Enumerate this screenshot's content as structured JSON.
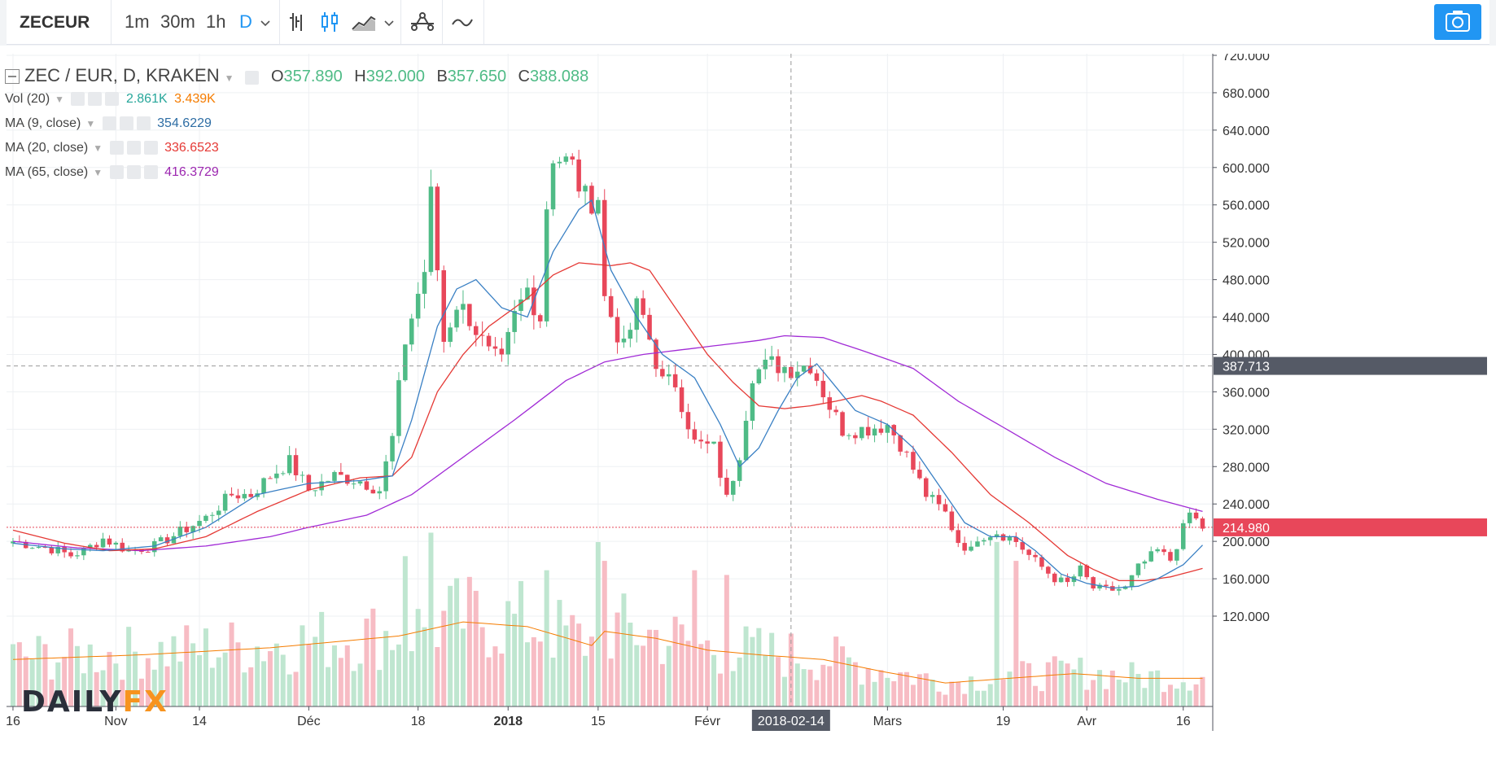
{
  "toolbar": {
    "symbol": "ZECEUR",
    "intervals": [
      {
        "label": "1m",
        "active": false
      },
      {
        "label": "30m",
        "active": false
      },
      {
        "label": "1h",
        "active": false
      },
      {
        "label": "D",
        "active": true
      }
    ]
  },
  "legend": {
    "title": "ZEC / EUR, D, KRAKEN",
    "ohlc": [
      {
        "label": "O",
        "value": "357.890"
      },
      {
        "label": "H",
        "value": "392.000"
      },
      {
        "label": "B",
        "value": "357.650"
      },
      {
        "label": "C",
        "value": "388.088"
      }
    ],
    "indicators": [
      {
        "name": "Vol (20)",
        "values": [
          "2.861K",
          "3.439K"
        ],
        "colors": [
          "#26a69a",
          "#f57c00"
        ]
      },
      {
        "name": "MA (9, close)",
        "values": [
          "354.6229"
        ],
        "colors": [
          "#2e6da4"
        ]
      },
      {
        "name": "MA (20, close)",
        "values": [
          "336.6523"
        ],
        "colors": [
          "#e53935"
        ]
      },
      {
        "name": "MA (65, close)",
        "values": [
          "416.3729"
        ],
        "colors": [
          "#9c27b0"
        ]
      }
    ]
  },
  "logo": {
    "part1": "DAILY",
    "part2": "FX"
  },
  "colors": {
    "up": "#4fbb86",
    "down": "#e8475a",
    "ma9": "#3a80c4",
    "ma20": "#e53935",
    "ma65": "#a12bd6",
    "volma": "#f57c00",
    "accent": "#2196f3"
  },
  "chart_data": {
    "type": "candlestick",
    "title": "ZEC / EUR, D, KRAKEN",
    "y_axis": {
      "range": [
        110,
        725
      ],
      "ticks": [
        120,
        160,
        200,
        240,
        280,
        320,
        360,
        400,
        440,
        480,
        520,
        560,
        600,
        640,
        680,
        720
      ],
      "tick_labels": [
        "120.000",
        "160.000",
        "200.000",
        "240.000",
        "280.000",
        "320.000",
        "360.000",
        "400.000",
        "440.000",
        "480.000",
        "520.000",
        "560.000",
        "600.000",
        "640.000",
        "680.000",
        "720.000"
      ]
    },
    "x_axis": {
      "tick_labels": [
        {
          "label": "16",
          "index": 0,
          "bold": false
        },
        {
          "label": "Nov",
          "index": 16,
          "bold": false
        },
        {
          "label": "14",
          "index": 29,
          "bold": false
        },
        {
          "label": "Déc",
          "index": 46,
          "bold": false
        },
        {
          "label": "18",
          "index": 63,
          "bold": false
        },
        {
          "label": "2018",
          "index": 77,
          "bold": true
        },
        {
          "label": "15",
          "index": 91,
          "bold": false
        },
        {
          "label": "Févr",
          "index": 108,
          "bold": false
        },
        {
          "label": "Mars",
          "index": 136,
          "bold": false
        },
        {
          "label": "19",
          "index": 154,
          "bold": false
        },
        {
          "label": "Avr",
          "index": 167,
          "bold": false
        },
        {
          "label": "16",
          "index": 182,
          "bold": false
        }
      ]
    },
    "crosshair": {
      "index": 121,
      "x_label": "2018-02-14",
      "price": 387.713,
      "price_label": "387.713"
    },
    "last_price": {
      "value": 214.98,
      "label": "214.980"
    },
    "segments": [
      [
        0,
        200
      ],
      [
        6,
        192
      ],
      [
        9,
        185
      ],
      [
        11,
        190
      ],
      [
        14,
        203
      ],
      [
        18,
        190
      ],
      [
        22,
        195
      ],
      [
        26,
        210
      ],
      [
        30,
        225
      ],
      [
        34,
        250
      ],
      [
        37,
        250
      ],
      [
        40,
        270
      ],
      [
        43,
        285
      ],
      [
        46,
        255
      ],
      [
        50,
        270
      ],
      [
        54,
        265
      ],
      [
        57,
        255
      ],
      [
        59,
        310
      ],
      [
        61,
        415
      ],
      [
        64,
        490
      ],
      [
        65,
        568
      ],
      [
        67,
        415
      ],
      [
        69,
        455
      ],
      [
        71,
        440
      ],
      [
        74,
        400
      ],
      [
        76,
        390
      ],
      [
        78,
        440
      ],
      [
        80,
        470
      ],
      [
        82,
        440
      ],
      [
        83,
        560
      ],
      [
        84,
        615
      ],
      [
        87,
        600
      ],
      [
        89,
        565
      ],
      [
        91,
        570
      ],
      [
        92,
        460
      ],
      [
        95,
        405
      ],
      [
        97,
        450
      ],
      [
        98,
        440
      ],
      [
        101,
        370
      ],
      [
        103,
        370
      ],
      [
        106,
        305
      ],
      [
        109,
        300
      ],
      [
        111,
        245
      ],
      [
        113,
        295
      ],
      [
        115,
        380
      ],
      [
        118,
        390
      ],
      [
        121,
        385
      ],
      [
        124,
        390
      ],
      [
        127,
        345
      ],
      [
        129,
        320
      ],
      [
        132,
        320
      ],
      [
        136,
        325
      ],
      [
        138,
        305
      ],
      [
        142,
        250
      ],
      [
        145,
        230
      ],
      [
        147,
        200
      ],
      [
        149,
        190
      ],
      [
        150,
        205
      ],
      [
        153,
        210
      ],
      [
        156,
        200
      ],
      [
        158,
        185
      ],
      [
        162,
        160
      ],
      [
        164,
        155
      ],
      [
        166,
        170
      ],
      [
        168,
        150
      ],
      [
        171,
        148
      ],
      [
        173,
        150
      ],
      [
        175,
        172
      ],
      [
        178,
        190
      ],
      [
        180,
        180
      ],
      [
        183,
        230
      ],
      [
        185,
        215
      ]
    ],
    "ma9_points": [
      [
        0,
        198
      ],
      [
        8,
        192
      ],
      [
        14,
        190
      ],
      [
        22,
        195
      ],
      [
        30,
        215
      ],
      [
        38,
        250
      ],
      [
        46,
        262
      ],
      [
        54,
        265
      ],
      [
        59,
        270
      ],
      [
        62,
        330
      ],
      [
        66,
        430
      ],
      [
        69,
        470
      ],
      [
        72,
        480
      ],
      [
        76,
        450
      ],
      [
        80,
        440
      ],
      [
        84,
        510
      ],
      [
        88,
        555
      ],
      [
        90,
        565
      ],
      [
        93,
        490
      ],
      [
        97,
        440
      ],
      [
        101,
        400
      ],
      [
        106,
        375
      ],
      [
        110,
        325
      ],
      [
        113,
        280
      ],
      [
        116,
        300
      ],
      [
        119,
        340
      ],
      [
        122,
        375
      ],
      [
        125,
        390
      ],
      [
        128,
        365
      ],
      [
        131,
        340
      ],
      [
        136,
        325
      ],
      [
        140,
        300
      ],
      [
        144,
        260
      ],
      [
        148,
        220
      ],
      [
        152,
        205
      ],
      [
        156,
        205
      ],
      [
        159,
        190
      ],
      [
        163,
        165
      ],
      [
        167,
        155
      ],
      [
        171,
        150
      ],
      [
        175,
        152
      ],
      [
        178,
        160
      ],
      [
        182,
        175
      ],
      [
        185,
        196
      ]
    ],
    "ma20_points": [
      [
        0,
        212
      ],
      [
        8,
        198
      ],
      [
        15,
        190
      ],
      [
        22,
        192
      ],
      [
        30,
        205
      ],
      [
        38,
        232
      ],
      [
        46,
        255
      ],
      [
        54,
        268
      ],
      [
        59,
        270
      ],
      [
        62,
        290
      ],
      [
        66,
        360
      ],
      [
        70,
        400
      ],
      [
        74,
        430
      ],
      [
        80,
        460
      ],
      [
        84,
        485
      ],
      [
        88,
        498
      ],
      [
        93,
        495
      ],
      [
        96,
        498
      ],
      [
        99,
        490
      ],
      [
        103,
        450
      ],
      [
        108,
        400
      ],
      [
        112,
        370
      ],
      [
        116,
        345
      ],
      [
        120,
        342
      ],
      [
        124,
        345
      ],
      [
        128,
        350
      ],
      [
        132,
        356
      ],
      [
        135,
        350
      ],
      [
        140,
        335
      ],
      [
        146,
        295
      ],
      [
        152,
        250
      ],
      [
        158,
        220
      ],
      [
        164,
        185
      ],
      [
        168,
        170
      ],
      [
        172,
        158
      ],
      [
        176,
        158
      ],
      [
        180,
        162
      ],
      [
        185,
        171
      ]
    ],
    "ma65_points": [
      [
        0,
        200
      ],
      [
        10,
        193
      ],
      [
        20,
        190
      ],
      [
        30,
        195
      ],
      [
        40,
        205
      ],
      [
        46,
        215
      ],
      [
        55,
        228
      ],
      [
        62,
        250
      ],
      [
        70,
        290
      ],
      [
        78,
        330
      ],
      [
        86,
        372
      ],
      [
        92,
        392
      ],
      [
        98,
        400
      ],
      [
        104,
        405
      ],
      [
        110,
        410
      ],
      [
        116,
        415
      ],
      [
        120,
        420
      ],
      [
        126,
        418
      ],
      [
        133,
        402
      ],
      [
        140,
        385
      ],
      [
        147,
        350
      ],
      [
        155,
        318
      ],
      [
        162,
        290
      ],
      [
        170,
        262
      ],
      [
        178,
        245
      ],
      [
        185,
        232
      ]
    ],
    "volume": {
      "max": 3.5,
      "last": [
        2.861,
        3.439
      ],
      "spikes": [
        [
          61,
          3.2
        ],
        [
          65,
          3.7
        ],
        [
          83,
          2.9
        ],
        [
          91,
          3.5
        ],
        [
          92,
          3.1
        ],
        [
          106,
          2.9
        ],
        [
          111,
          2.8
        ],
        [
          153,
          3.5
        ],
        [
          156,
          3.1
        ]
      ],
      "ma_points": [
        [
          0,
          1.0
        ],
        [
          20,
          1.1
        ],
        [
          40,
          1.25
        ],
        [
          60,
          1.5
        ],
        [
          70,
          1.8
        ],
        [
          80,
          1.7
        ],
        [
          90,
          1.3
        ],
        [
          92,
          1.6
        ],
        [
          100,
          1.45
        ],
        [
          108,
          1.2
        ],
        [
          116,
          1.1
        ],
        [
          126,
          1.0
        ],
        [
          135,
          0.75
        ],
        [
          145,
          0.5
        ],
        [
          155,
          0.6
        ],
        [
          165,
          0.7
        ],
        [
          175,
          0.6
        ],
        [
          185,
          0.6
        ]
      ]
    },
    "grid": true
  }
}
